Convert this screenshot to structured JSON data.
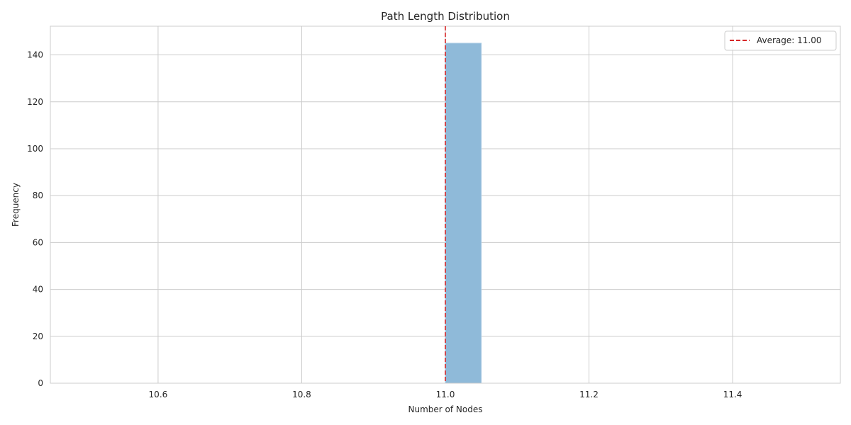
{
  "chart_data": {
    "type": "bar",
    "title": "Path Length Distribution",
    "xlabel": "Number of Nodes",
    "ylabel": "Frequency",
    "xlim": [
      10.45,
      11.55
    ],
    "ylim": [
      0,
      152.25
    ],
    "x_ticks": [
      10.6,
      10.8,
      11.0,
      11.2,
      11.4
    ],
    "y_ticks": [
      0,
      20,
      40,
      60,
      80,
      100,
      120,
      140
    ],
    "bins": [
      {
        "start": 11.0,
        "end": 11.05,
        "count": 145
      }
    ],
    "bar_color": "#8fbad9",
    "grid": true,
    "reference_line": {
      "x": 11.0,
      "label": "Average: 11.00",
      "color": "#d62728",
      "style": "dashed"
    },
    "legend": {
      "position": "top-right",
      "entries": [
        "Average: 11.00"
      ]
    }
  }
}
